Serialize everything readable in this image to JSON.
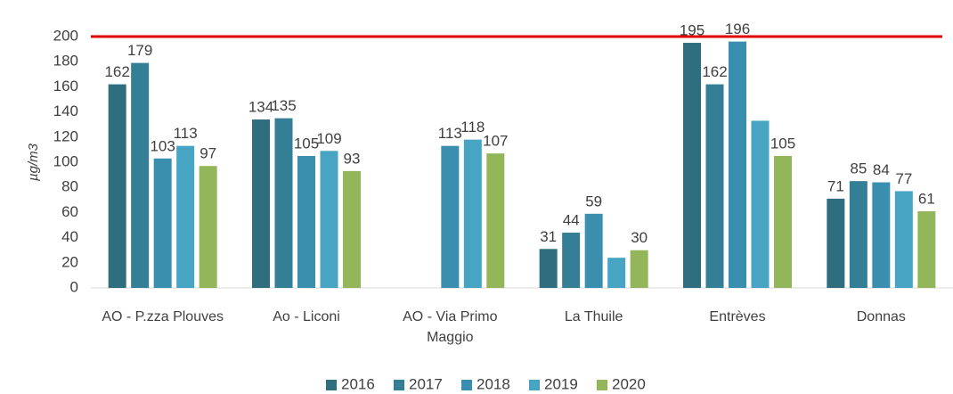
{
  "chart_data": {
    "type": "bar",
    "y_label": "µg/m3",
    "categories": [
      "AO - P.zza Plouves",
      "Ao - Liconi",
      "AO - Via Primo Maggio",
      "La Thuile",
      "Entrèves",
      "Donnas"
    ],
    "series": [
      {
        "name": "2016",
        "color": "#2e6e7e",
        "values": [
          162,
          134,
          null,
          31,
          195,
          71
        ]
      },
      {
        "name": "2017",
        "color": "#347f96",
        "values": [
          179,
          135,
          null,
          44,
          162,
          85
        ]
      },
      {
        "name": "2018",
        "color": "#3a8fae",
        "values": [
          103,
          105,
          113,
          59,
          196,
          84
        ]
      },
      {
        "name": "2019",
        "color": "#48a4c3",
        "values": [
          113,
          109,
          118,
          24,
          133,
          77
        ],
        "value_labels": [
          "113",
          "109",
          "118",
          null,
          null,
          "77"
        ]
      },
      {
        "name": "2020",
        "color": "#93b65a",
        "values": [
          97,
          93,
          107,
          30,
          105,
          61
        ]
      }
    ],
    "threshold": {
      "value": 200,
      "color": "#e00000"
    },
    "ylim": [
      0,
      200
    ],
    "yticks": [
      0,
      20,
      40,
      60,
      80,
      100,
      120,
      140,
      160,
      180,
      200
    ],
    "legend": "bottom"
  }
}
